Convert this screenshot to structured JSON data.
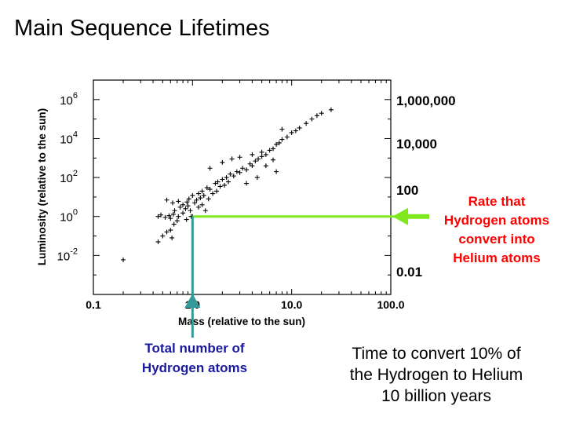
{
  "title": "Main Sequence Lifetimes",
  "colors": {
    "points": "#000000",
    "arrow_green": "#7fe81f",
    "arrow_teal": "#339999",
    "text_red": "#ff0000",
    "text_blue": "#1a1aa0"
  },
  "chart_data": {
    "type": "scatter",
    "xlabel": "Mass (relative to the sun)",
    "ylabel": "Luminosity (relative to the sun)",
    "x_scale": "log",
    "y_scale": "log",
    "xlim": [
      0.1,
      100
    ],
    "ylim": [
      0.0001,
      10000000
    ],
    "x_ticks": [
      "0.1",
      "1.0",
      "10.0",
      "100.0"
    ],
    "y_ticks": [
      {
        "base": "10",
        "exp": "-2",
        "value": 0.01
      },
      {
        "base": "10",
        "exp": "0",
        "value": 1
      },
      {
        "base": "10",
        "exp": "2",
        "value": 100
      },
      {
        "base": "10",
        "exp": "4",
        "value": 10000
      },
      {
        "base": "10",
        "exp": "6",
        "value": 1000000
      }
    ],
    "right_axis_labels": [
      {
        "label": "1,000,000",
        "value": 1000000
      },
      {
        "label": "10,000",
        "value": 10000
      },
      {
        "label": "100",
        "value": 100
      },
      {
        "label": "0.01",
        "value": 0.01
      }
    ],
    "marker": "+",
    "points": [
      [
        0.2,
        0.006
      ],
      [
        0.45,
        0.05
      ],
      [
        0.5,
        0.1
      ],
      [
        0.55,
        0.16
      ],
      [
        0.6,
        0.2
      ],
      [
        0.62,
        0.08
      ],
      [
        0.45,
        1.0
      ],
      [
        0.48,
        1.2
      ],
      [
        0.53,
        0.9
      ],
      [
        0.58,
        1.1
      ],
      [
        0.6,
        0.8
      ],
      [
        0.64,
        1.3
      ],
      [
        0.65,
        0.4
      ],
      [
        0.66,
        2.0
      ],
      [
        0.7,
        0.6
      ],
      [
        0.72,
        1.0
      ],
      [
        0.75,
        3.0
      ],
      [
        0.55,
        7.0
      ],
      [
        0.63,
        5.0
      ],
      [
        0.72,
        6.0
      ],
      [
        0.8,
        1.5
      ],
      [
        0.8,
        4.0
      ],
      [
        0.85,
        2.5
      ],
      [
        0.87,
        0.7
      ],
      [
        0.88,
        5.5
      ],
      [
        0.9,
        3.5
      ],
      [
        0.92,
        8.0
      ],
      [
        0.95,
        2.0
      ],
      [
        0.97,
        1.0
      ],
      [
        1.0,
        1.0
      ],
      [
        1.0,
        12.0
      ],
      [
        1.05,
        5.0
      ],
      [
        1.1,
        7.0
      ],
      [
        1.15,
        3.0
      ],
      [
        1.15,
        15.0
      ],
      [
        1.2,
        9.0
      ],
      [
        1.25,
        4.0
      ],
      [
        1.25,
        20.0
      ],
      [
        1.3,
        12.0
      ],
      [
        1.35,
        2.0
      ],
      [
        1.4,
        30.0
      ],
      [
        1.45,
        8.0
      ],
      [
        1.5,
        25.0
      ],
      [
        1.6,
        15.0
      ],
      [
        1.7,
        50.0
      ],
      [
        1.75,
        20.0
      ],
      [
        1.8,
        60.0
      ],
      [
        1.9,
        35.0
      ],
      [
        2.0,
        80.0
      ],
      [
        2.1,
        40.0
      ],
      [
        2.2,
        100.0
      ],
      [
        2.3,
        60.0
      ],
      [
        2.4,
        150.0
      ],
      [
        2.6,
        120.0
      ],
      [
        2.8,
        200.0
      ],
      [
        3.0,
        180.0
      ],
      [
        3.2,
        300.0
      ],
      [
        3.5,
        250.0
      ],
      [
        3.8,
        500.0
      ],
      [
        4.0,
        400.0
      ],
      [
        4.3,
        700.0
      ],
      [
        4.6,
        900.0
      ],
      [
        5.0,
        1200.0
      ],
      [
        5.5,
        1500.0
      ],
      [
        6.0,
        2500.0
      ],
      [
        6.5,
        3000.0
      ],
      [
        7.0,
        5000.0
      ],
      [
        7.5,
        6000.0
      ],
      [
        8.0,
        9000.0
      ],
      [
        9.0,
        12000.0
      ],
      [
        10.0,
        20000.0
      ],
      [
        11.0,
        25000.0
      ],
      [
        12.0,
        35000.0
      ],
      [
        14.0,
        60000.0
      ],
      [
        16.0,
        100000.0
      ],
      [
        18.0,
        150000.0
      ],
      [
        20.0,
        200000.0
      ],
      [
        25.0,
        300000.0
      ],
      [
        1.5,
        300.0
      ],
      [
        2.0,
        600.0
      ],
      [
        2.5,
        900.0
      ],
      [
        3.0,
        1100.0
      ],
      [
        4.0,
        1500.0
      ],
      [
        5.0,
        2000.0
      ],
      [
        5.5,
        400.0
      ],
      [
        6.5,
        800.0
      ],
      [
        7.0,
        200.0
      ],
      [
        4.5,
        100.0
      ],
      [
        3.5,
        50.0
      ],
      [
        8.0,
        30000.0
      ]
    ],
    "annotations": {
      "rate": "Rate that Hydrogen atoms convert into Helium atoms",
      "total": "Total number of Hydrogen atoms"
    },
    "marked_point": {
      "x": 1.0,
      "y": 1.0
    }
  },
  "notes": {
    "time_line1": "Time to convert 10%  of",
    "time_line2": "the Hydrogen to Helium",
    "time_line3": "10 billion years"
  },
  "labels": {
    "rate_l1": "Rate that",
    "rate_l2": "Hydrogen atoms",
    "rate_l3": "convert into",
    "rate_l4": "Helium atoms",
    "total_l1": "Total number of",
    "total_l2": "Hydrogen atoms"
  }
}
